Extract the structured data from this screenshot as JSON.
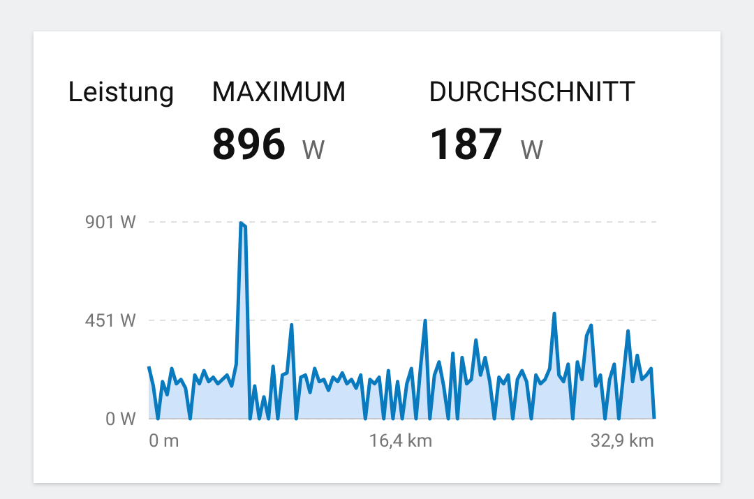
{
  "header": {
    "title": "Leistung",
    "stats": [
      {
        "label": "MAXIMUM",
        "value": "896",
        "unit": "W"
      },
      {
        "label": "DURCHSCHNITT",
        "value": "187",
        "unit": "W"
      }
    ]
  },
  "chart_data": {
    "type": "area",
    "color": "#0a7abf",
    "fill": "#cfe3fb",
    "grid": true,
    "xlim": [
      0,
      32.9
    ],
    "ylim": [
      0,
      901
    ],
    "xticks": [
      {
        "value": 0,
        "label": "0 m"
      },
      {
        "value": 16.4,
        "label": "16,4 km"
      },
      {
        "value": 32.9,
        "label": "32,9 km"
      }
    ],
    "yticks": [
      {
        "value": 0,
        "label": "0 W"
      },
      {
        "value": 451,
        "label": "451 W"
      },
      {
        "value": 901,
        "label": "901 W"
      }
    ],
    "x": [
      0,
      0.3,
      0.6,
      0.9,
      1.2,
      1.5,
      1.8,
      2.1,
      2.4,
      2.7,
      3,
      3.3,
      3.6,
      3.9,
      4.2,
      4.5,
      4.8,
      5.1,
      5.4,
      5.7,
      6,
      6.3,
      6.6,
      6.9,
      7.2,
      7.5,
      7.8,
      8.1,
      8.4,
      8.7,
      9,
      9.3,
      9.6,
      9.9,
      10.2,
      10.5,
      10.8,
      11.1,
      11.4,
      11.7,
      12,
      12.3,
      12.6,
      12.9,
      13.2,
      13.5,
      13.8,
      14.1,
      14.4,
      14.7,
      15,
      15.3,
      15.6,
      15.9,
      16.2,
      16.5,
      16.8,
      17.1,
      17.4,
      17.7,
      18,
      18.3,
      18.6,
      18.9,
      19.2,
      19.5,
      19.8,
      20.1,
      20.4,
      20.7,
      21,
      21.3,
      21.6,
      21.9,
      22.2,
      22.5,
      22.8,
      23.1,
      23.4,
      23.7,
      24,
      24.3,
      24.6,
      24.9,
      25.2,
      25.5,
      25.8,
      26.1,
      26.4,
      26.7,
      27,
      27.3,
      27.6,
      27.9,
      28.2,
      28.5,
      28.8,
      29.1,
      29.4,
      29.7,
      30,
      30.3,
      30.6,
      30.9,
      31.2,
      31.5,
      31.8,
      32.1,
      32.4,
      32.7,
      32.9
    ],
    "values": [
      240,
      150,
      0,
      170,
      110,
      230,
      160,
      180,
      140,
      0,
      200,
      160,
      220,
      170,
      190,
      160,
      180,
      200,
      150,
      250,
      896,
      880,
      0,
      150,
      0,
      100,
      0,
      240,
      0,
      200,
      210,
      430,
      0,
      190,
      200,
      120,
      230,
      170,
      180,
      130,
      190,
      170,
      210,
      160,
      180,
      140,
      200,
      0,
      180,
      160,
      190,
      0,
      220,
      0,
      170,
      0,
      160,
      230,
      0,
      240,
      450,
      0,
      200,
      260,
      150,
      0,
      300,
      0,
      280,
      160,
      180,
      360,
      200,
      280,
      170,
      0,
      190,
      160,
      200,
      0,
      180,
      220,
      170,
      0,
      200,
      160,
      180,
      230,
      482,
      200,
      170,
      250,
      0,
      260,
      180,
      380,
      428,
      150,
      200,
      0,
      180,
      250,
      0,
      200,
      402,
      170,
      290,
      180,
      200,
      230,
      0
    ]
  }
}
